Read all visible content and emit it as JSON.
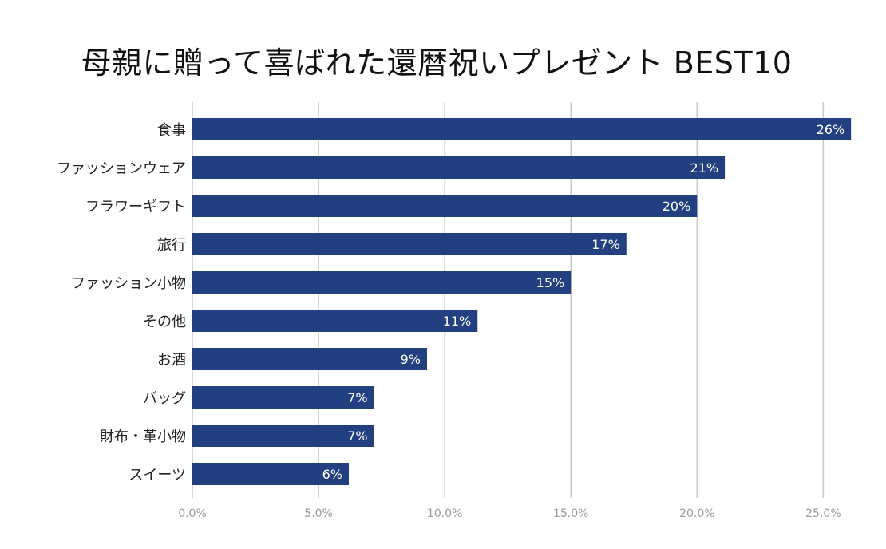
{
  "chart_data": {
    "type": "bar",
    "orientation": "horizontal",
    "title": "母親に贈って喜ばれた還暦祝いプレゼント BEST10",
    "categories": [
      "食事",
      "ファッションウェア",
      "フラワーギフト",
      "旅行",
      "ファッション小物",
      "その他",
      "お酒",
      "バッグ",
      "財布・革小物",
      "スイーツ"
    ],
    "values": [
      26,
      21,
      20,
      17,
      15,
      11,
      9,
      7,
      7,
      6
    ],
    "value_fractions": [
      0.261,
      0.211,
      0.2,
      0.172,
      0.15,
      0.113,
      0.093,
      0.072,
      0.072,
      0.062
    ],
    "data_labels": [
      "26%",
      "21%",
      "20%",
      "17%",
      "15%",
      "11%",
      "9%",
      "7%",
      "7%",
      "6%"
    ],
    "x_ticks": [
      "0.0%",
      "5.0%",
      "10.0%",
      "15.0%",
      "20.0%",
      "25.0%"
    ],
    "x_tick_values": [
      0,
      0.05,
      0.1,
      0.15,
      0.2,
      0.25
    ],
    "xlim": [
      0,
      0.26
    ],
    "xlabel": "",
    "ylabel": "",
    "grid": true,
    "bar_color": "#22407f"
  }
}
